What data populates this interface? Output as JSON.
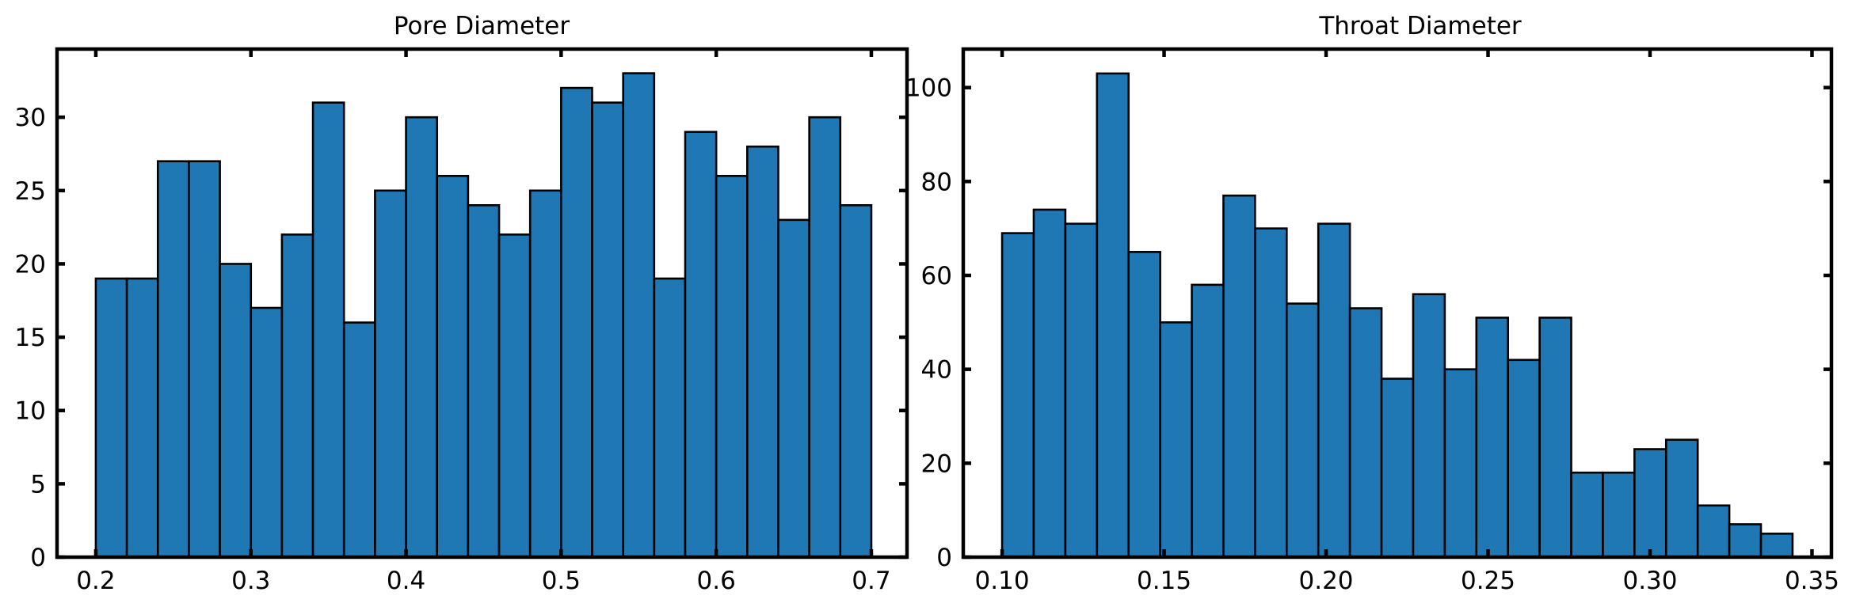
{
  "chart_data": [
    {
      "type": "bar",
      "subtype": "histogram",
      "title": "Pore Diameter",
      "xlabel": "",
      "ylabel": "",
      "bin_start": 0.2,
      "bin_width": 0.02,
      "values": [
        19,
        19,
        27,
        27,
        20,
        17,
        22,
        31,
        16,
        25,
        30,
        26,
        24,
        22,
        25,
        32,
        31,
        33,
        19,
        29,
        26,
        28,
        23,
        30,
        24
      ],
      "xlim": [
        0.175,
        0.723
      ],
      "ylim": [
        0,
        34.65
      ],
      "xticks": [
        0.2,
        0.3,
        0.4,
        0.5,
        0.6,
        0.7
      ],
      "xtick_labels": [
        "0.2",
        "0.3",
        "0.4",
        "0.5",
        "0.6",
        "0.7"
      ],
      "yticks": [
        0,
        5,
        10,
        15,
        20,
        25,
        30
      ],
      "ytick_labels": [
        "0",
        "5",
        "10",
        "15",
        "20",
        "25",
        "30"
      ],
      "bar_color": "#1f77b4",
      "edge_color": "#000000",
      "grid": false
    },
    {
      "type": "bar",
      "subtype": "histogram",
      "title": "Throat Diameter",
      "xlabel": "",
      "ylabel": "",
      "bin_start": 0.1,
      "bin_width": 0.00976,
      "values": [
        69,
        74,
        71,
        103,
        65,
        50,
        58,
        77,
        70,
        54,
        71,
        53,
        38,
        56,
        40,
        51,
        42,
        51,
        18,
        18,
        23,
        25,
        11,
        7,
        5
      ],
      "xlim": [
        0.088,
        0.356
      ],
      "ylim": [
        0,
        108.2
      ],
      "xticks": [
        0.1,
        0.15,
        0.2,
        0.25,
        0.3,
        0.35
      ],
      "xtick_labels": [
        "0.10",
        "0.15",
        "0.20",
        "0.25",
        "0.30",
        "0.35"
      ],
      "yticks": [
        0,
        20,
        40,
        60,
        80,
        100
      ],
      "ytick_labels": [
        "0",
        "20",
        "40",
        "60",
        "80",
        "100"
      ],
      "bar_color": "#1f77b4",
      "edge_color": "#000000",
      "grid": false
    }
  ]
}
